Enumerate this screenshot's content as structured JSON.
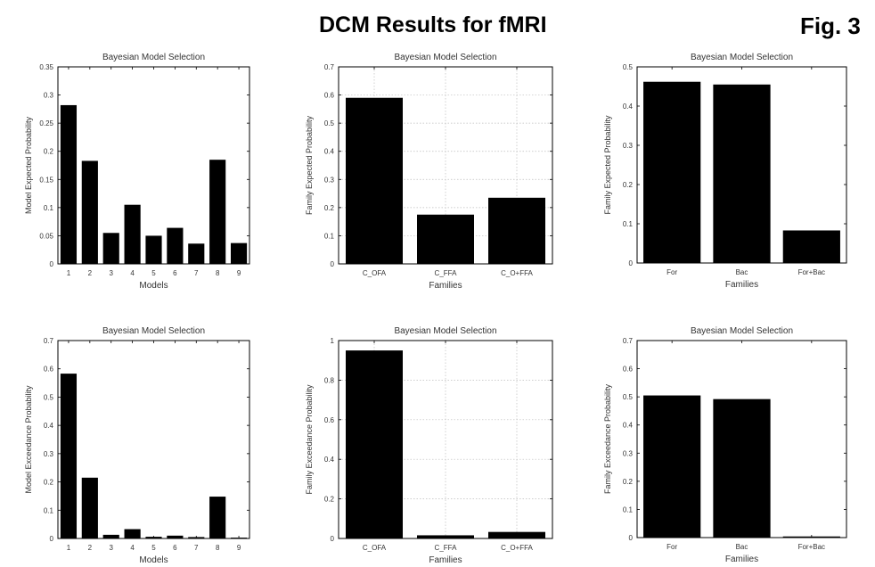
{
  "header": {
    "title": "DCM Results for fMRI",
    "figure_label": "Fig. 3"
  },
  "chart_data": [
    {
      "type": "bar",
      "title": "Bayesian Model Selection",
      "xlabel": "Models",
      "ylabel": "Model Expected Probability",
      "categories": [
        "1",
        "2",
        "3",
        "4",
        "5",
        "6",
        "7",
        "8",
        "9"
      ],
      "values": [
        0.282,
        0.183,
        0.055,
        0.105,
        0.05,
        0.064,
        0.036,
        0.185,
        0.037
      ],
      "ylim": [
        0,
        0.35
      ],
      "yticks": [
        "0",
        "0.05",
        "0.1",
        "0.15",
        "0.2",
        "0.25",
        "0.3",
        "0.35"
      ],
      "grid": false
    },
    {
      "type": "bar",
      "title": "Bayesian Model Selection",
      "xlabel": "Families",
      "ylabel": "Family Expected Probability",
      "categories": [
        "C_OFA",
        "C_FFA",
        "C_O+FFA"
      ],
      "values": [
        0.59,
        0.175,
        0.235
      ],
      "ylim": [
        0,
        0.7
      ],
      "yticks": [
        "0",
        "0.1",
        "0.2",
        "0.3",
        "0.4",
        "0.5",
        "0.6",
        "0.7"
      ],
      "grid": true
    },
    {
      "type": "bar",
      "title": "Bayesian Model Selection",
      "xlabel": "Families",
      "ylabel": "Family Expected Probability",
      "categories": [
        "For",
        "Bac",
        "For+Bac"
      ],
      "values": [
        0.462,
        0.455,
        0.083
      ],
      "ylim": [
        0,
        0.5
      ],
      "yticks": [
        "0",
        "0.1",
        "0.2",
        "0.3",
        "0.4",
        "0.5"
      ],
      "grid": false
    },
    {
      "type": "bar",
      "title": "Bayesian Model Selection",
      "xlabel": "Models",
      "ylabel": "Model Exceedance Probability",
      "categories": [
        "1",
        "2",
        "3",
        "4",
        "5",
        "6",
        "7",
        "8",
        "9"
      ],
      "values": [
        0.583,
        0.215,
        0.013,
        0.033,
        0.006,
        0.01,
        0.005,
        0.148,
        0.003
      ],
      "ylim": [
        0,
        0.7
      ],
      "yticks": [
        "0",
        "0.1",
        "0.2",
        "0.3",
        "0.4",
        "0.5",
        "0.6",
        "0.7"
      ],
      "grid": false
    },
    {
      "type": "bar",
      "title": "Bayesian Model Selection",
      "xlabel": "Families",
      "ylabel": "Family Exceedance Probability",
      "categories": [
        "C_OFA",
        "C_FFA",
        "C_O+FFA"
      ],
      "values": [
        0.95,
        0.016,
        0.033
      ],
      "ylim": [
        0,
        1
      ],
      "yticks": [
        "0",
        "0.2",
        "0.4",
        "0.6",
        "0.8",
        "1"
      ],
      "grid": true
    },
    {
      "type": "bar",
      "title": "Bayesian Model Selection",
      "xlabel": "Families",
      "ylabel": "Family Exceedance Probability",
      "categories": [
        "For",
        "Bac",
        "For+Bac"
      ],
      "values": [
        0.505,
        0.492,
        0.004
      ],
      "ylim": [
        0,
        0.7
      ],
      "yticks": [
        "0",
        "0.1",
        "0.2",
        "0.3",
        "0.4",
        "0.5",
        "0.6",
        "0.7"
      ],
      "grid": false
    }
  ]
}
